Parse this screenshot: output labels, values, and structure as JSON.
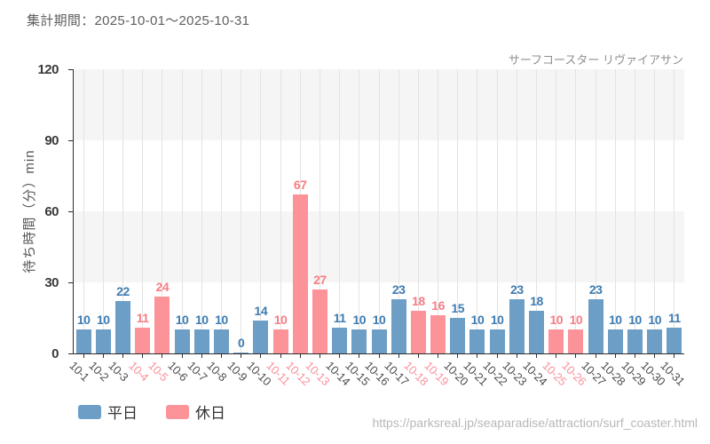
{
  "header": {
    "period_label": "集計期間：2025-10-01～2025-10-31"
  },
  "colors": {
    "weekday_bar": "#6d9ec6",
    "weekday_text": "#3e7cb1",
    "holiday_bar": "#fb9399",
    "holiday_text": "#f87d84",
    "xlabel_weekday": "#4d4d4d",
    "xlabel_holiday": "#f9909a",
    "grid": "#e3e3e3",
    "band": "#f5f5f5"
  },
  "chart_data": {
    "type": "bar",
    "title": "サーフコースター リヴァイアサン",
    "ylabel": "待ち時間（分）min",
    "ylim": [
      0,
      120
    ],
    "yticks": [
      0,
      30,
      60,
      90,
      120
    ],
    "grid": "vertical gridlines at each category; alternating horizontal gray bands (30-60, 90-120)",
    "legend_position": "bottom-left",
    "categories": [
      "10-1",
      "10-2",
      "10-3",
      "10-4",
      "10-5",
      "10-6",
      "10-7",
      "10-8",
      "10-9",
      "10-10",
      "10-11",
      "10-12",
      "10-13",
      "10-14",
      "10-15",
      "10-16",
      "10-17",
      "10-18",
      "10-19",
      "10-20",
      "10-21",
      "10-22",
      "10-23",
      "10-24",
      "10-25",
      "10-26",
      "10-27",
      "10-28",
      "10-29",
      "10-30",
      "10-31"
    ],
    "values": [
      10,
      10,
      22,
      11,
      24,
      10,
      10,
      10,
      0,
      14,
      10,
      67,
      27,
      11,
      10,
      10,
      23,
      18,
      16,
      15,
      10,
      10,
      23,
      18,
      10,
      10,
      23,
      10,
      10,
      10,
      11
    ],
    "day_types": [
      "weekday",
      "weekday",
      "weekday",
      "holiday",
      "holiday",
      "weekday",
      "weekday",
      "weekday",
      "weekday",
      "weekday",
      "holiday",
      "holiday",
      "holiday",
      "weekday",
      "weekday",
      "weekday",
      "weekday",
      "holiday",
      "holiday",
      "weekday",
      "weekday",
      "weekday",
      "weekday",
      "weekday",
      "holiday",
      "holiday",
      "weekday",
      "weekday",
      "weekday",
      "weekday",
      "weekday"
    ],
    "legend": [
      {
        "label": "平日",
        "type": "weekday"
      },
      {
        "label": "休日",
        "type": "holiday"
      }
    ]
  },
  "footer": {
    "url": "https://parksreal.jp/seaparadise/attraction/surf_coaster.html"
  }
}
